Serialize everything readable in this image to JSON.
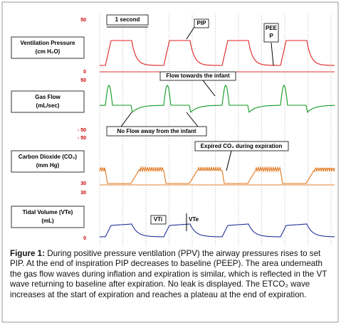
{
  "panels": [
    {
      "label": "Ventilation Pressure",
      "unit": "(cm H₂O)",
      "top": "50",
      "bottom": "0"
    },
    {
      "label": "Gas Flow",
      "unit": "(mL/sec)",
      "top": "50",
      "bottom": "- 50"
    },
    {
      "label": "Carbon Dioxide (CO₂)",
      "unit": "(mm Hg)",
      "top": "- 50",
      "bottom": "30"
    },
    {
      "label": "Tidal Volume (VTe)",
      "unit": "(mL)",
      "top": "30",
      "bottom": "0"
    }
  ],
  "annotations": {
    "time": "1 second",
    "pip": "PIP",
    "peep": "PEEP",
    "flow_in": "Flow towards the infant",
    "flow_out": "No Flow away from the infant",
    "co2": "Expired CO₂ during expiration",
    "vti": "VTi",
    "vte": "VTe"
  },
  "caption": {
    "label": "Figure 1:",
    "text": "During positive pressure ventilation (PPV) the airway pressures rises to set PIP. At the end of inspiration PIP decreases to baseline (PEEP). The area underneath the gas flow waves during inflation and expiration is similar, which is reflected in the VT wave returning to baseline after expiration. No leak is displayed. The ETCO₂ wave increases at the start of expiration and reaches a plateau at the end of expiration."
  }
}
